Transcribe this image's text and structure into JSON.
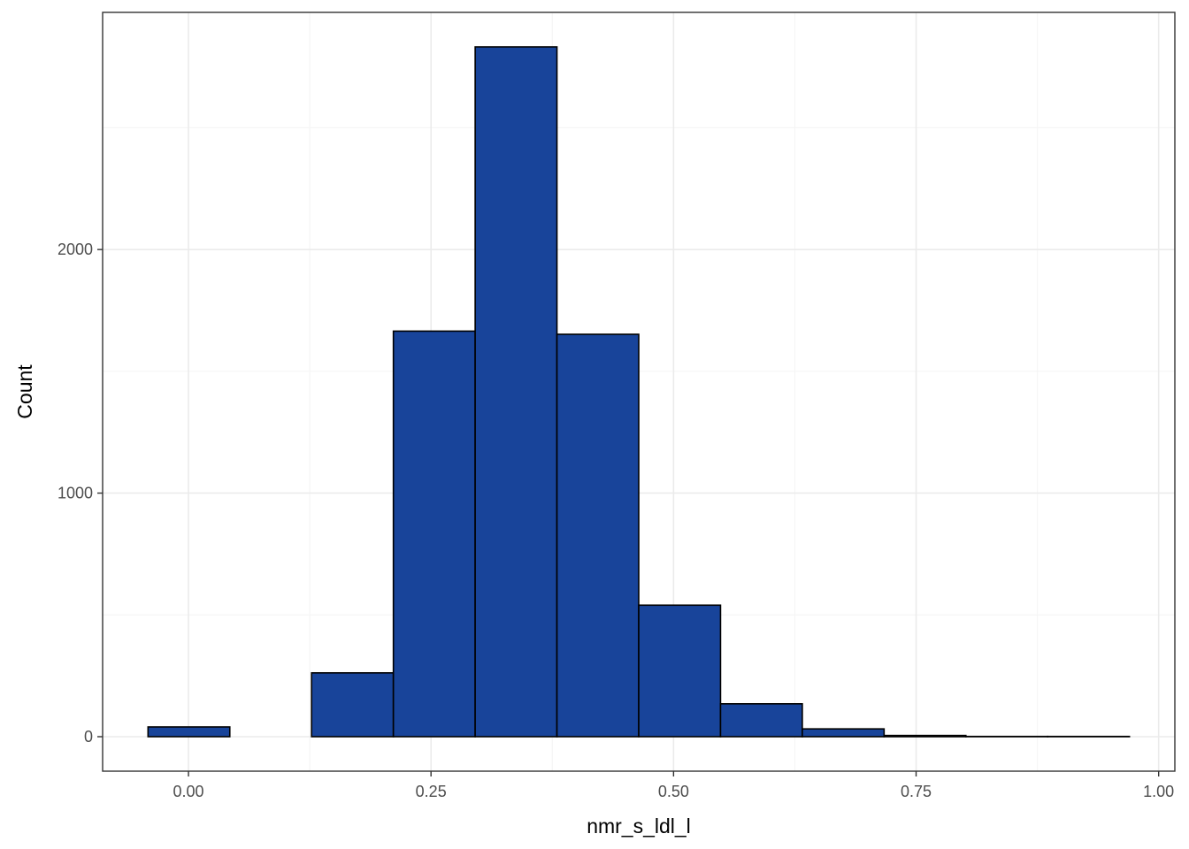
{
  "chart_data": {
    "type": "bar",
    "subtype": "histogram",
    "title": "",
    "xlabel": "nmr_s_ldl_l",
    "ylabel": "Count",
    "bin_width": 0.0843,
    "bins": [
      {
        "x0": -0.0417,
        "x1": 0.0426,
        "count": 40
      },
      {
        "x0": 0.0426,
        "x1": 0.1269,
        "count": 0
      },
      {
        "x0": 0.1269,
        "x1": 0.2112,
        "count": 262
      },
      {
        "x0": 0.2112,
        "x1": 0.2955,
        "count": 1665
      },
      {
        "x0": 0.2955,
        "x1": 0.3798,
        "count": 2832
      },
      {
        "x0": 0.3798,
        "x1": 0.4641,
        "count": 1652
      },
      {
        "x0": 0.4641,
        "x1": 0.5484,
        "count": 540
      },
      {
        "x0": 0.5484,
        "x1": 0.6327,
        "count": 135
      },
      {
        "x0": 0.6327,
        "x1": 0.717,
        "count": 32
      },
      {
        "x0": 0.717,
        "x1": 0.8013,
        "count": 5
      },
      {
        "x0": 0.8013,
        "x1": 0.8856,
        "count": 1
      },
      {
        "x0": 0.8856,
        "x1": 0.9699,
        "count": 1
      }
    ],
    "xlim": [
      -0.0885,
      1.0167
    ],
    "ylim": [
      -141.6,
      2973.6
    ],
    "x_ticks": [
      {
        "value": 0.0,
        "label": "0.00"
      },
      {
        "value": 0.25,
        "label": "0.25"
      },
      {
        "value": 0.5,
        "label": "0.50"
      },
      {
        "value": 0.75,
        "label": "0.75"
      },
      {
        "value": 1.0,
        "label": "1.00"
      }
    ],
    "y_ticks": [
      {
        "value": 0,
        "label": "0"
      },
      {
        "value": 1000,
        "label": "1000"
      },
      {
        "value": 2000,
        "label": "2000"
      }
    ],
    "x_minor_ticks": [
      0.125,
      0.375,
      0.625,
      0.875
    ],
    "y_minor_ticks": [
      500,
      1500,
      2500
    ],
    "grid": true,
    "legend": "none",
    "colors": {
      "bar_fill": "#18449A",
      "bar_stroke": "#000000",
      "grid_major": "#EBEBEB",
      "grid_minor": "#F5F5F5",
      "panel_border": "#333333",
      "tick_text": "#4D4D4D"
    }
  }
}
